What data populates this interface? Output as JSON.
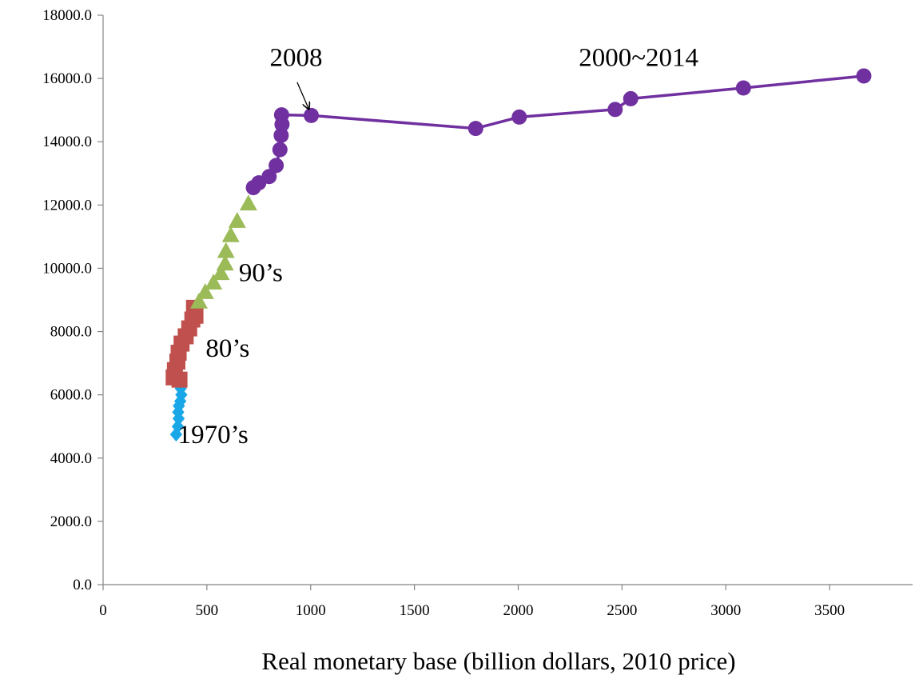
{
  "chart_data": {
    "type": "scatter",
    "title": "",
    "xlabel": "Real monetary base (billion dollars, 2010 price)",
    "ylabel": "",
    "xlim": [
      0,
      3900
    ],
    "ylim": [
      0,
      18000
    ],
    "xticks": [
      0,
      500,
      1000,
      1500,
      2000,
      2500,
      3000,
      3500
    ],
    "yticks": [
      0,
      2000,
      4000,
      6000,
      8000,
      10000,
      12000,
      14000,
      16000,
      18000
    ],
    "x_tick_labels": [
      "0",
      "500",
      "1000",
      "1500",
      "2000",
      "2500",
      "3000",
      "3500"
    ],
    "y_tick_labels": [
      "0.0",
      "2000.0",
      "4000.0",
      "6000.0",
      "8000.0",
      "10000.0",
      "12000.0",
      "14000.0",
      "16000.0",
      "18000.0"
    ],
    "grid": false,
    "legend": "none",
    "series": [
      {
        "marker": "diamond",
        "color": "#1aa7e8",
        "line": false,
        "points": [
          [
            352,
            4750
          ],
          [
            360,
            5000
          ],
          [
            364,
            5250
          ],
          [
            362,
            5450
          ],
          [
            365,
            5650
          ],
          [
            372,
            5800
          ],
          [
            377,
            6000
          ],
          [
            374,
            6200
          ],
          [
            370,
            6400
          ]
        ]
      },
      {
        "marker": "square",
        "color": "#c0504d",
        "line": false,
        "points": [
          [
            340,
            6550
          ],
          [
            368,
            6480
          ],
          [
            346,
            6780
          ],
          [
            358,
            7050
          ],
          [
            364,
            7330
          ],
          [
            378,
            7620
          ],
          [
            398,
            7850
          ],
          [
            415,
            8100
          ],
          [
            430,
            8380
          ],
          [
            445,
            8500
          ],
          [
            438,
            8750
          ]
        ]
      },
      {
        "marker": "triangle",
        "color": "#9bbb59",
        "line": false,
        "points": [
          [
            462,
            8950
          ],
          [
            492,
            9250
          ],
          [
            532,
            9550
          ],
          [
            568,
            9850
          ],
          [
            588,
            10150
          ],
          [
            592,
            10550
          ],
          [
            615,
            11050
          ],
          [
            646,
            11500
          ],
          [
            700,
            12050
          ]
        ]
      },
      {
        "marker": "circle",
        "color": "#7030a0",
        "line": true,
        "points": [
          [
            724,
            12550
          ],
          [
            750,
            12700
          ],
          [
            800,
            12900
          ],
          [
            834,
            13250
          ],
          [
            852,
            13750
          ],
          [
            858,
            14200
          ],
          [
            862,
            14550
          ],
          [
            860,
            14850
          ],
          [
            1003,
            14830
          ],
          [
            1795,
            14420
          ],
          [
            2005,
            14780
          ],
          [
            2467,
            15020
          ],
          [
            2542,
            15360
          ],
          [
            3085,
            15700
          ],
          [
            3665,
            16080
          ]
        ]
      }
    ],
    "annotations": [
      {
        "text": "2008",
        "x": 930,
        "y": 16400
      },
      {
        "text": "2000~2014",
        "x": 2580,
        "y": 16400
      },
      {
        "text": "90’s",
        "x": 760,
        "y": 9600
      },
      {
        "text": "80’s",
        "x": 600,
        "y": 7200
      },
      {
        "text": "1970’s",
        "x": 530,
        "y": 4470
      }
    ],
    "arrow": {
      "from": [
        935,
        15880
      ],
      "to": [
        990,
        15050
      ]
    }
  }
}
